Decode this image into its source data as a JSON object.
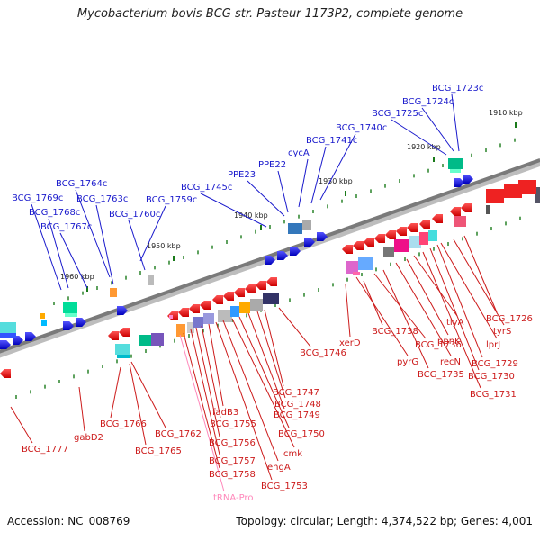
{
  "title": "Mycobacterium bovis BCG str. Pasteur 1173P2, complete genome",
  "footer": {
    "accession": "Accession: NC_008769",
    "summary": "Topology: circular; Length: 4,374,522 bp; Genes: 4,001"
  },
  "colors": {
    "forward_label": "#1a1acc",
    "reverse_label": "#cc1a1a",
    "trna_label": "#ff88bb",
    "backbone": "#7a7a7a",
    "tick": "#1a7a1a"
  },
  "kbp_ticks": [
    "1910 kbp",
    "1920 kbp",
    "1930 kbp",
    "1940 kbp",
    "1950 kbp",
    "1960 kbp"
  ],
  "forward_genes": [
    "BCG_1723c",
    "BCG_1724c",
    "BCG_1725c",
    "BCG_1740c",
    "BCG_1741c",
    "cycA",
    "PPE22",
    "PPE23",
    "BCG_1745c",
    "BCG_1759c",
    "BCG_1760c",
    "BCG_1763c",
    "BCG_1764c",
    "BCG_1767c",
    "BCG_1768c",
    "BCG_1769c"
  ],
  "reverse_genes": [
    "BCG_1726",
    "tyrS",
    "lprJ",
    "BCG_1729",
    "BCG_1730",
    "BCG_1731",
    "tlyA",
    "ppnK",
    "recN",
    "BCG_1735",
    "BCG_1736",
    "pyrG",
    "BCG_1738",
    "xerD",
    "BCG_1746",
    "BCG_1747",
    "BCG_1748",
    "BCG_1749",
    "BCG_1750",
    "cmk",
    "engA",
    "BCG_1753",
    "fadB3",
    "BCG_1755",
    "BCG_1756",
    "BCG_1757",
    "BCG_1758",
    "tRNA-Pro",
    "BCG_1762",
    "BCG_1765",
    "BCG_1766",
    "gabD2",
    "BCG_1777"
  ]
}
